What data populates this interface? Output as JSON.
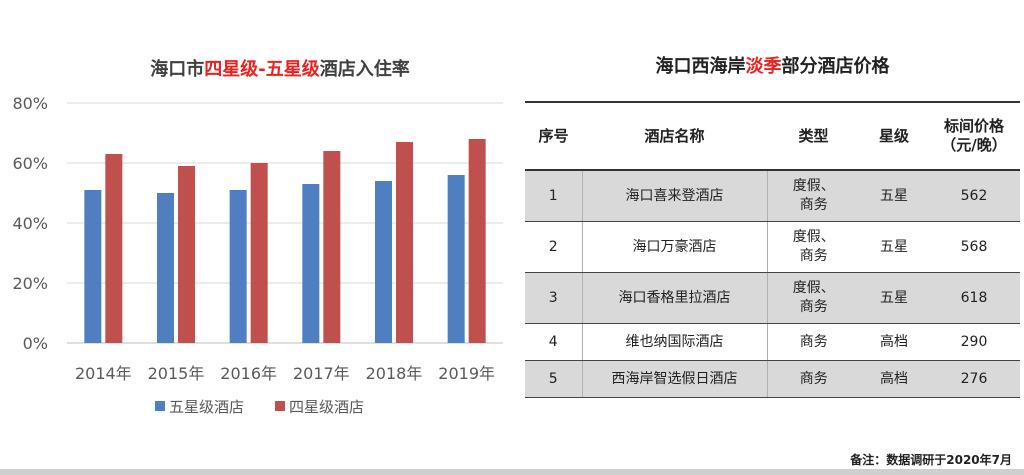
{
  "chart": {
    "title_pre": "海口市",
    "title_hl": "四星级-五星级",
    "title_post": "酒店入住率"
  },
  "chart_data": {
    "type": "bar",
    "categories": [
      "2014年",
      "2015年",
      "2016年",
      "2017年",
      "2018年",
      "2019年"
    ],
    "series": [
      {
        "name": "五星级酒店",
        "color": "#4f7fc0",
        "values": [
          51,
          50,
          51,
          53,
          54,
          56
        ]
      },
      {
        "name": "四星级酒店",
        "color": "#c0504d",
        "values": [
          63,
          59,
          60,
          64,
          67,
          68
        ]
      }
    ],
    "ylim": [
      0,
      80
    ],
    "yticks": [
      "0%",
      "20%",
      "40%",
      "60%",
      "80%"
    ],
    "ytick_values": [
      0,
      20,
      40,
      60,
      80
    ],
    "grid": true,
    "legend_position": "bottom"
  },
  "table": {
    "title_pre": "海口西海岸",
    "title_hl": "淡季",
    "title_post": "部分酒店价格",
    "headers": {
      "no": "序号",
      "name": "酒店名称",
      "type": "类型",
      "star": "星级",
      "price_line1": "标间价格",
      "price_line2": "（元/晚）"
    },
    "rows": [
      {
        "no": "1",
        "name": "海口喜来登酒店",
        "type_line1": "度假、",
        "type_line2": "商务",
        "star": "五星",
        "price": "562"
      },
      {
        "no": "2",
        "name": "海口万豪酒店",
        "type_line1": "度假、",
        "type_line2": "商务",
        "star": "五星",
        "price": "568"
      },
      {
        "no": "3",
        "name": "海口香格里拉酒店",
        "type_line1": "度假、",
        "type_line2": "商务",
        "star": "五星",
        "price": "618"
      },
      {
        "no": "4",
        "name": "维也纳国际酒店",
        "type_line1": "商务",
        "type_line2": "",
        "star": "高档",
        "price": "290"
      },
      {
        "no": "5",
        "name": "西海岸智选假日酒店",
        "type_line1": "商务",
        "type_line2": "",
        "star": "高档",
        "price": "276"
      }
    ]
  },
  "footnote": "备注：数据调研于2020年7月"
}
